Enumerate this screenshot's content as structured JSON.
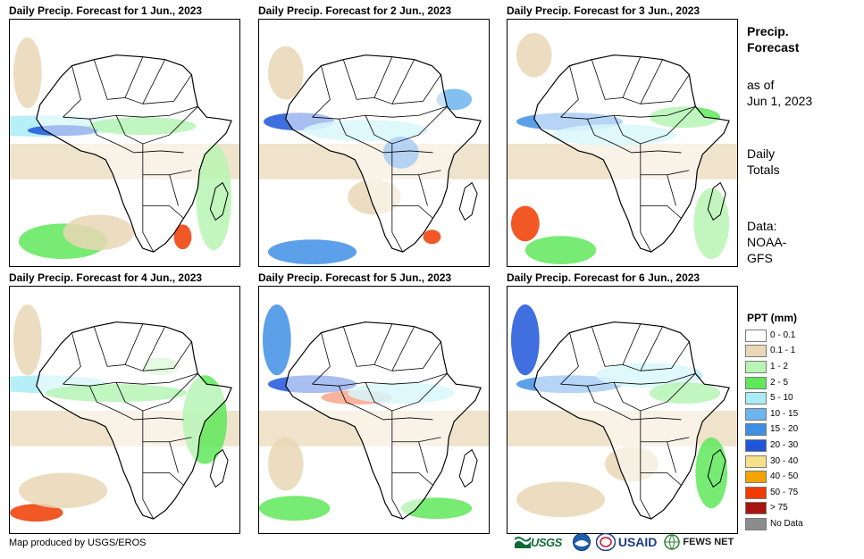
{
  "panels": [
    {
      "title": "Daily Precip. Forecast for 1 Jun., 2023"
    },
    {
      "title": "Daily Precip. Forecast for 2 Jun., 2023"
    },
    {
      "title": "Daily Precip. Forecast for 3 Jun., 2023"
    },
    {
      "title": "Daily Precip. Forecast for 4 Jun., 2023"
    },
    {
      "title": "Daily Precip. Forecast for 5 Jun., 2023"
    },
    {
      "title": "Daily Precip. Forecast for 6 Jun., 2023"
    }
  ],
  "sidebar": {
    "title_line1": "Precip.",
    "title_line2": "Forecast",
    "asof_line1": "as of",
    "asof_line2": "Jun 1, 2023",
    "period_line1": "Daily",
    "period_line2": "Totals",
    "source_line1": "Data:",
    "source_line2": "NOAA-",
    "source_line3": "GFS"
  },
  "legend": {
    "title": "PPT (mm)",
    "items": [
      {
        "label": "0 - 0.1",
        "color": "#ffffff"
      },
      {
        "label": "0.1 - 1",
        "color": "#e9d7b5"
      },
      {
        "label": "1 - 2",
        "color": "#b8f5b3"
      },
      {
        "label": "2 - 5",
        "color": "#5fe85a"
      },
      {
        "label": "5 - 10",
        "color": "#a9ecf5"
      },
      {
        "label": "10 - 15",
        "color": "#6db5ef"
      },
      {
        "label": "15 - 20",
        "color": "#3f8fe6"
      },
      {
        "label": "20 - 30",
        "color": "#1f56d9"
      },
      {
        "label": "30 - 40",
        "color": "#f7e08a"
      },
      {
        "label": "40 - 50",
        "color": "#f4a300"
      },
      {
        "label": "50 - 75",
        "color": "#f03a00"
      },
      {
        "label": "> 75",
        "color": "#a8140e"
      },
      {
        "label": "No Data",
        "color": "#8c8c8c"
      }
    ]
  },
  "footer": {
    "credit": "Map produced by USGS/EROS",
    "logo_usgs": "USGS",
    "logo_usaid": "USAID",
    "logo_fews": "FEWS NET"
  }
}
